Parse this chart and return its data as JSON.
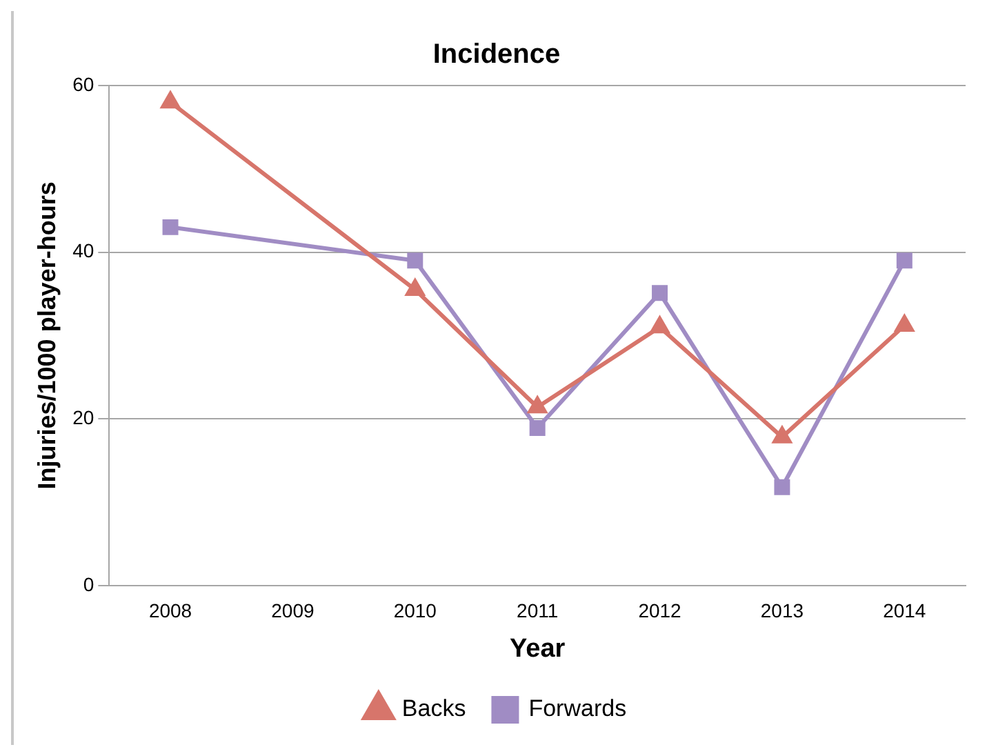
{
  "chart_data": {
    "type": "line",
    "title": "Incidence",
    "xlabel": "Year",
    "ylabel": "Injuries/1000 player-hours",
    "categories": [
      "2008",
      "2009",
      "2010",
      "2011",
      "2012",
      "2013",
      "2014"
    ],
    "series": [
      {
        "name": "Backs",
        "color": "#d7756b",
        "values": [
          58,
          null,
          35.5,
          21.4,
          31,
          17.8,
          31.2
        ],
        "marker": "triangle"
      },
      {
        "name": "Forwards",
        "color": "#a08cc4",
        "values": [
          43,
          null,
          39,
          18.9,
          35.1,
          11.8,
          39
        ],
        "marker": "square"
      }
    ],
    "ylim": [
      0,
      60
    ],
    "yticks": [
      0,
      20,
      40,
      60
    ],
    "grid": "y",
    "legend": "bottom",
    "line_style": "solid"
  }
}
